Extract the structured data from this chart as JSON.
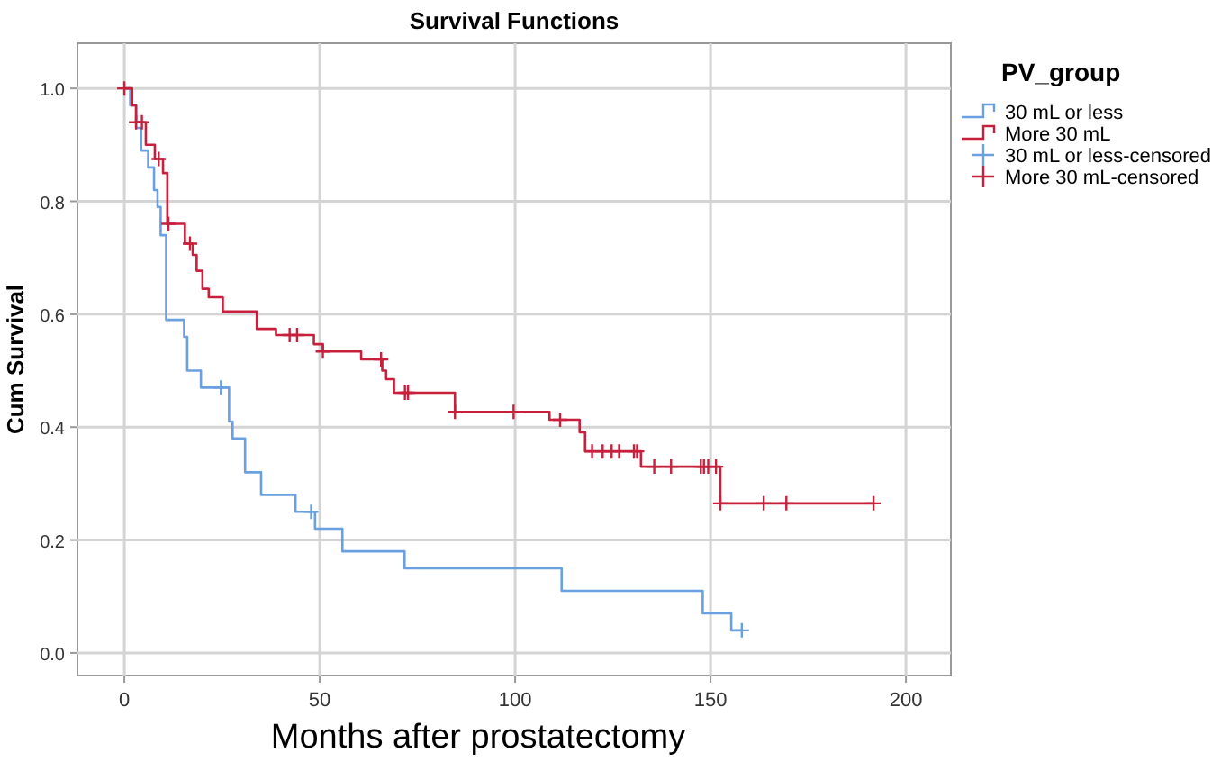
{
  "chart_data": {
    "type": "step",
    "title": "Survival Functions",
    "xlabel": "Months after prostatectomy",
    "ylabel": "Cum Survival",
    "legend_title": "PV_group",
    "legend": "top right",
    "grid": true,
    "xlim": [
      -12,
      211.5
    ],
    "ylim": [
      -0.04,
      1.08
    ],
    "xticks": [
      0,
      50,
      100,
      150,
      200
    ],
    "yticks": [
      {
        "value": 0,
        "label": "0.0"
      },
      {
        "value": 0.2,
        "label": "0.2"
      },
      {
        "value": 0.4,
        "label": "0.4"
      },
      {
        "value": 0.6,
        "label": "0.6"
      },
      {
        "value": 0.8,
        "label": "0.8"
      },
      {
        "value": 1,
        "label": "1.0"
      }
    ],
    "series": [
      {
        "name": "30 mL or less",
        "color": "#6a9fe0",
        "x": [
          0,
          1.5,
          3,
          4.3,
          6.1,
          7.6,
          8.5,
          9.3,
          10.7,
          15.3,
          16.1,
          19.6,
          26.8,
          27.7,
          30.9,
          35,
          43.8,
          48.8,
          55.8,
          71.7,
          111.9,
          148,
          155.3,
          158
        ],
        "values": [
          1,
          0.97,
          0.93,
          0.89,
          0.86,
          0.82,
          0.79,
          0.74,
          0.59,
          0.56,
          0.5,
          0.47,
          0.41,
          0.38,
          0.32,
          0.28,
          0.25,
          0.22,
          0.18,
          0.15,
          0.11,
          0.07,
          0.04,
          0.04
        ]
      },
      {
        "name": "More 30 mL",
        "color": "#c8203c",
        "x": [
          0,
          2,
          3,
          5.5,
          7.8,
          9.9,
          11,
          15.5,
          17.5,
          18.5,
          20,
          21.6,
          25.2,
          33.9,
          38.8,
          48.5,
          50.8,
          60.6,
          66,
          67,
          69,
          84.6,
          108.8,
          116.5,
          117.9,
          132.2,
          152.5,
          191.7
        ],
        "values": [
          1,
          0.97,
          0.94,
          0.9,
          0.875,
          0.85,
          0.76,
          0.725,
          0.705,
          0.677,
          0.645,
          0.63,
          0.605,
          0.574,
          0.563,
          0.547,
          0.534,
          0.52,
          0.5,
          0.485,
          0.461,
          0.427,
          0.413,
          0.391,
          0.357,
          0.33,
          0.265,
          0.265
        ]
      },
      {
        "name": "30 mL or less-censored",
        "type": "scatter",
        "marker": "cross",
        "color": "#6a9fe0",
        "x": [
          24.7,
          47.8,
          158
        ],
        "values": [
          0.47,
          0.25,
          0.04
        ]
      },
      {
        "name": "More 30 mL-censored",
        "type": "scatter",
        "marker": "cross",
        "color": "#c8203c",
        "x": [
          0,
          3,
          4.5,
          8.8,
          11.3,
          16.8,
          42.3,
          44.2,
          50.8,
          65.7,
          71.8,
          72.6,
          84.6,
          99.6,
          111.5,
          119.7,
          122.4,
          124.7,
          126.6,
          130.4,
          131.2,
          135.6,
          139.9,
          147.5,
          148.3,
          149.4,
          151.4,
          152.5,
          163.6,
          169.4,
          191.7
        ],
        "values": [
          1,
          0.94,
          0.94,
          0.875,
          0.76,
          0.725,
          0.563,
          0.563,
          0.534,
          0.52,
          0.461,
          0.461,
          0.427,
          0.427,
          0.413,
          0.357,
          0.357,
          0.357,
          0.357,
          0.357,
          0.357,
          0.33,
          0.33,
          0.33,
          0.33,
          0.33,
          0.33,
          0.265,
          0.265,
          0.265,
          0.265
        ]
      }
    ]
  }
}
